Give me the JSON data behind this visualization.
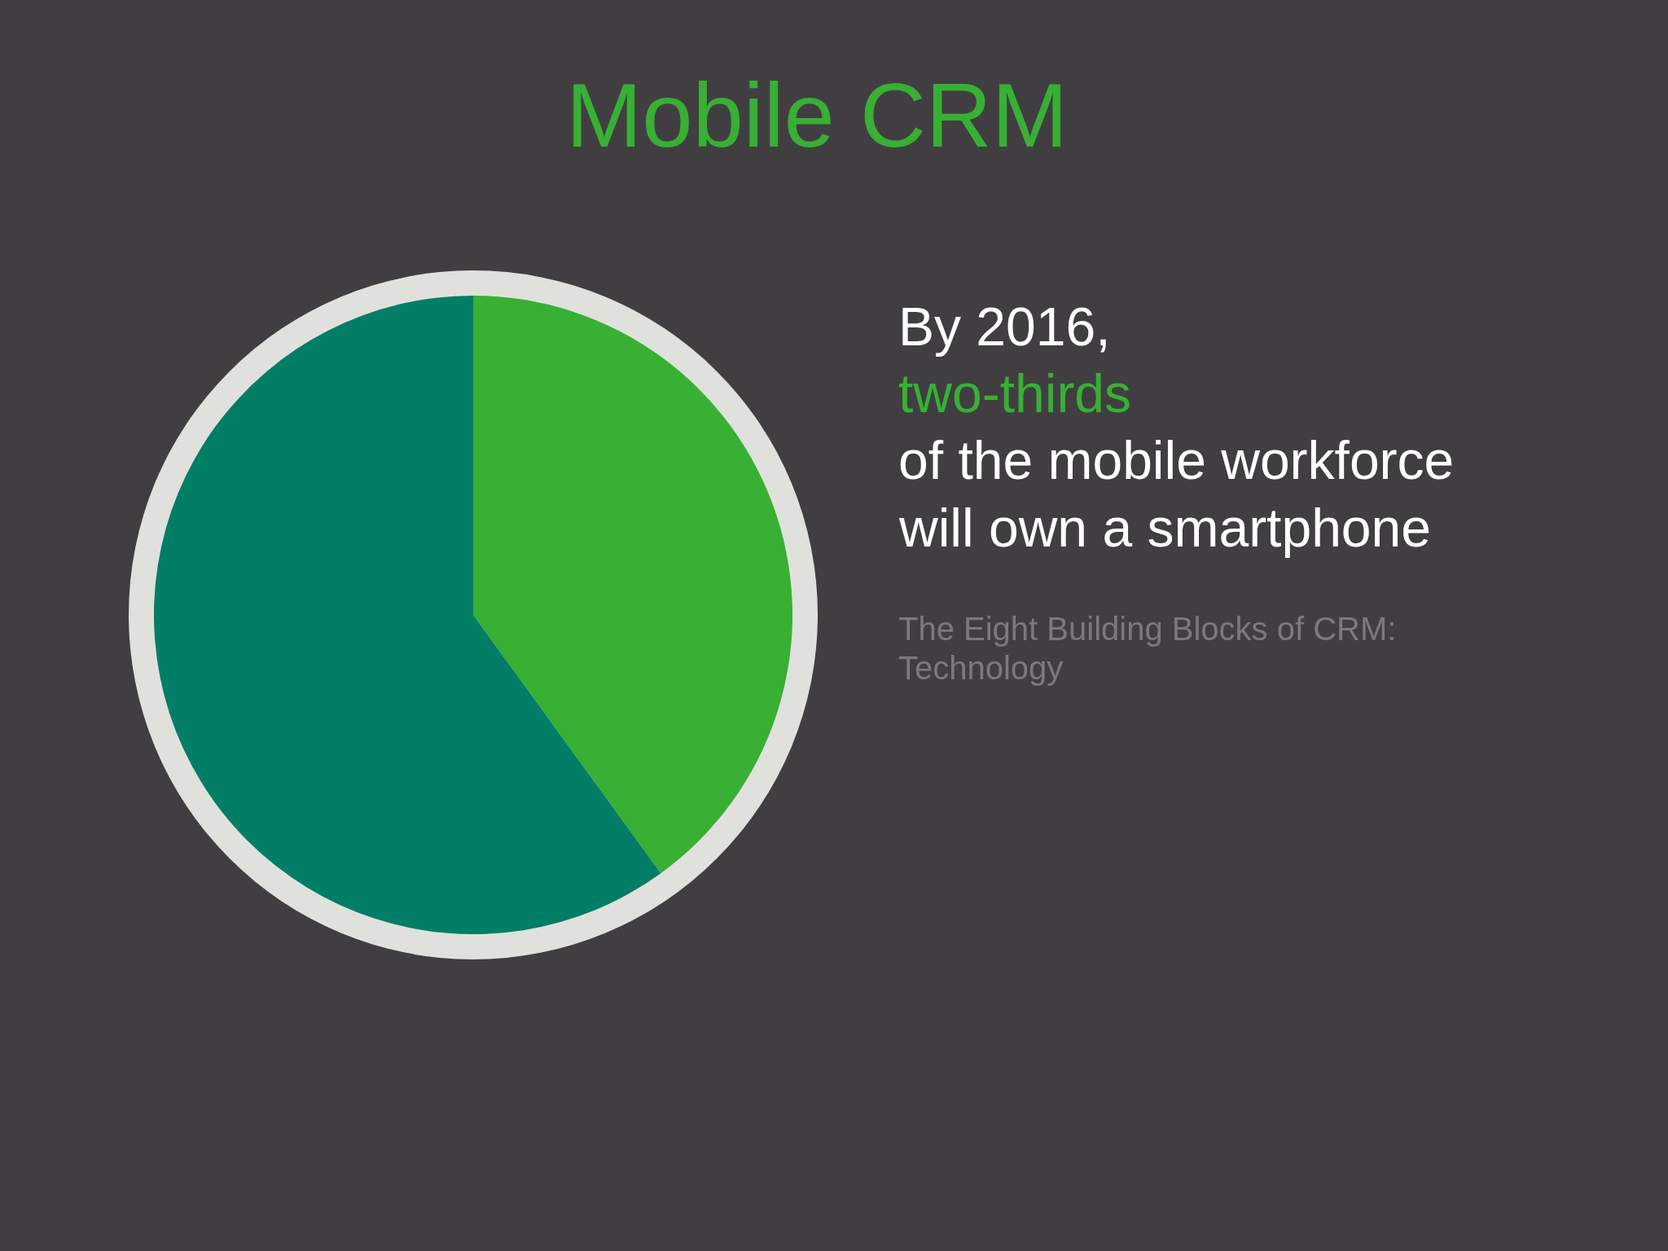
{
  "chart_data": {
    "type": "pie",
    "title": "Mobile CRM",
    "categories": [
      null,
      null
    ],
    "values": [
      40,
      60
    ],
    "colors": [
      "#37b034",
      "#037e66"
    ],
    "annotations": [
      "By 2016,",
      "two-thirds",
      "of the mobile workforce",
      "will own a smartphone",
      "The Eight Building Blocks of CRM:",
      "Technology"
    ]
  }
}
